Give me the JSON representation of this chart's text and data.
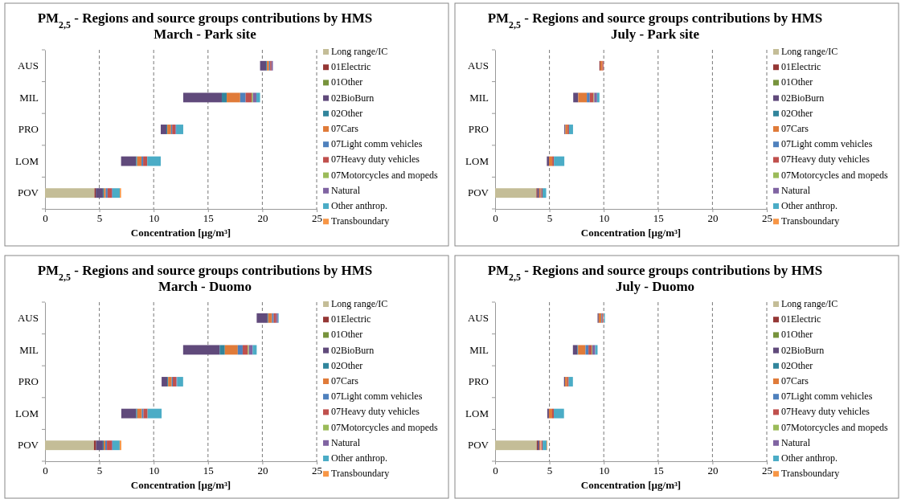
{
  "chart_data": [
    {
      "type": "bar",
      "orientation": "horizontal",
      "title": "PM$_{2,5}$ - Regions and source groups contributions by HMS",
      "subtitle": "March - Park site",
      "xlabel": "Concentration [µg/m³]",
      "categories": [
        "AUS",
        "MIL",
        "PRO",
        "LOM",
        "POV"
      ],
      "xlim": [
        0,
        25
      ],
      "xticks": [
        0,
        5,
        10,
        15,
        20,
        25
      ],
      "grid": "x",
      "legend": "right",
      "series": [
        {
          "name": "Long range/IC",
          "color": "#c4bd97",
          "values": [
            null,
            null,
            null,
            null,
            4.55
          ],
          "base": [
            null,
            null,
            null,
            null,
            0
          ]
        },
        {
          "name": "01Electric",
          "color": "#953735",
          "values": [
            null,
            null,
            null,
            null,
            0.12
          ],
          "base": [
            null,
            null,
            null,
            null,
            4.55
          ]
        },
        {
          "name": "01Other",
          "color": "#77933c",
          "values": [
            null,
            null,
            null,
            null,
            null
          ]
        },
        {
          "name": "02BioBurn",
          "color": "#604a7b",
          "values": [
            0.56,
            3.55,
            0.52,
            1.38,
            0.65
          ],
          "base": [
            19.79,
            12.72,
            10.65,
            7.0,
            4.67
          ]
        },
        {
          "name": "02Other",
          "color": "#31859c",
          "values": [
            0.07,
            0.45,
            0.08,
            0.1,
            0.1
          ],
          "base": [
            20.35,
            16.27,
            11.17,
            8.38,
            5.32
          ]
        },
        {
          "name": "07Cars",
          "color": "#e07b39",
          "values": [
            0.2,
            1.24,
            0.35,
            0.4,
            0.17
          ],
          "base": [
            20.42,
            16.72,
            11.25,
            8.48,
            5.42
          ]
        },
        {
          "name": "07Light comm vehicles",
          "color": "#4f81bd",
          "values": [
            0.1,
            0.5,
            0.1,
            0.15,
            0.17
          ],
          "base": [
            20.62,
            17.96,
            11.6,
            8.88,
            5.59
          ]
        },
        {
          "name": "07Heavy duty vehicles",
          "color": "#c0504d",
          "values": [
            0.12,
            0.55,
            0.3,
            0.38,
            0.38
          ],
          "base": [
            20.72,
            18.46,
            11.7,
            9.03,
            5.76
          ]
        },
        {
          "name": "07Motorcycles and mopeds",
          "color": "#9bbb59",
          "values": [
            null,
            0.12,
            null,
            null,
            null
          ],
          "base": [
            null,
            19.01,
            null,
            null,
            null
          ]
        },
        {
          "name": "Natural",
          "color": "#8064a2",
          "values": [
            0.13,
            0.32,
            0.06,
            null,
            0.06
          ],
          "base": [
            20.84,
            19.13,
            12.0,
            null,
            6.14
          ]
        },
        {
          "name": "Other anthrop.",
          "color": "#4bacc6",
          "values": [
            null,
            0.34,
            0.66,
            1.24,
            0.68
          ],
          "base": [
            null,
            19.45,
            12.06,
            9.41,
            6.2
          ]
        },
        {
          "name": "Transboundary",
          "color": "#f79646",
          "values": [
            null,
            null,
            null,
            null,
            0.12
          ],
          "base": [
            null,
            null,
            null,
            null,
            6.88
          ]
        }
      ]
    },
    {
      "type": "bar",
      "orientation": "horizontal",
      "title": "PM$_{2,5}$ - Regions and source groups contributions by HMS",
      "subtitle": "July - Park site",
      "xlabel": "Concentration [µg/m³]",
      "categories": [
        "AUS",
        "MIL",
        "PRO",
        "LOM",
        "POV"
      ],
      "xlim": [
        0,
        25
      ],
      "xticks": [
        0,
        5,
        10,
        15,
        20,
        25
      ],
      "grid": "x",
      "legend": "right",
      "series": [
        {
          "name": "Long range/IC",
          "color": "#c4bd97",
          "values": [
            null,
            null,
            null,
            null,
            3.8
          ],
          "base": [
            null,
            null,
            null,
            null,
            0
          ]
        },
        {
          "name": "01Electric",
          "color": "#953735",
          "values": [
            0.1,
            null,
            null,
            null,
            0.1
          ],
          "base": [
            9.6,
            null,
            null,
            null,
            3.8
          ]
        },
        {
          "name": "01Other",
          "color": "#77933c",
          "values": [
            null,
            null,
            null,
            null,
            null
          ]
        },
        {
          "name": "02BioBurn",
          "color": "#604a7b",
          "values": [
            null,
            0.46,
            0.1,
            0.2,
            0.15
          ],
          "base": [
            null,
            7.19,
            6.37,
            4.76,
            3.9
          ]
        },
        {
          "name": "02Other",
          "color": "#31859c",
          "values": [
            null,
            null,
            null,
            null,
            null
          ]
        },
        {
          "name": "07Cars",
          "color": "#e07b39",
          "values": [
            0.17,
            0.79,
            0.2,
            0.3,
            0.15
          ],
          "base": [
            9.7,
            7.65,
            6.47,
            4.96,
            4.05
          ]
        },
        {
          "name": "07Light comm vehicles",
          "color": "#4f81bd",
          "values": [
            null,
            0.27,
            null,
            null,
            0.06
          ],
          "base": [
            null,
            8.44,
            null,
            null,
            4.2
          ]
        },
        {
          "name": "07Heavy duty vehicles",
          "color": "#c0504d",
          "values": [
            0.1,
            0.35,
            0.13,
            0.15,
            0.1
          ],
          "base": [
            9.87,
            8.71,
            6.67,
            5.26,
            4.26
          ]
        },
        {
          "name": "07Motorcycles and mopeds",
          "color": "#9bbb59",
          "values": [
            null,
            0.06,
            null,
            null,
            null
          ],
          "base": [
            null,
            9.06,
            null,
            null,
            null
          ]
        },
        {
          "name": "Natural",
          "color": "#8064a2",
          "values": [
            null,
            0.26,
            null,
            null,
            null
          ],
          "base": [
            null,
            9.12,
            null,
            null,
            null
          ]
        },
        {
          "name": "Other anthrop.",
          "color": "#4bacc6",
          "values": [
            null,
            0.22,
            0.37,
            0.96,
            0.34
          ],
          "base": [
            null,
            9.38,
            6.8,
            5.41,
            4.36
          ]
        },
        {
          "name": "Transboundary",
          "color": "#f79646",
          "values": [
            null,
            null,
            null,
            null,
            null
          ]
        }
      ]
    },
    {
      "type": "bar",
      "orientation": "horizontal",
      "title": "PM$_{2,5}$ - Regions and source groups contributions by HMS",
      "subtitle": "March - Duomo",
      "xlabel": "Concentration [µg/m³]",
      "categories": [
        "AUS",
        "MIL",
        "PRO",
        "LOM",
        "POV"
      ],
      "xlim": [
        0,
        25
      ],
      "xticks": [
        0,
        5,
        10,
        15,
        20,
        25
      ],
      "grid": "x",
      "legend": "right",
      "series": [
        {
          "name": "Long range/IC",
          "color": "#c4bd97",
          "values": [
            null,
            null,
            null,
            null,
            4.5
          ],
          "base": [
            null,
            null,
            null,
            null,
            0
          ]
        },
        {
          "name": "01Electric",
          "color": "#953735",
          "values": [
            null,
            null,
            null,
            null,
            0.2
          ],
          "base": [
            null,
            null,
            null,
            null,
            4.5
          ]
        },
        {
          "name": "01Other",
          "color": "#77933c",
          "values": [
            null,
            null,
            null,
            null,
            null
          ]
        },
        {
          "name": "02BioBurn",
          "color": "#604a7b",
          "values": [
            1.0,
            3.37,
            0.52,
            1.37,
            0.62
          ],
          "base": [
            19.48,
            12.71,
            10.73,
            7.02,
            4.7
          ]
        },
        {
          "name": "02Other",
          "color": "#31859c",
          "values": [
            0.06,
            0.47,
            0.08,
            0.1,
            0.08
          ],
          "base": [
            20.48,
            16.08,
            11.25,
            8.39,
            5.32
          ]
        },
        {
          "name": "07Cars",
          "color": "#e07b39",
          "values": [
            0.35,
            1.19,
            0.33,
            0.42,
            0.15
          ],
          "base": [
            20.54,
            16.55,
            11.33,
            8.49,
            5.4
          ]
        },
        {
          "name": "07Light comm vehicles",
          "color": "#4f81bd",
          "values": [
            0.15,
            0.45,
            0.1,
            0.15,
            0.15
          ],
          "base": [
            20.89,
            17.74,
            11.66,
            8.91,
            5.55
          ]
        },
        {
          "name": "07Heavy duty vehicles",
          "color": "#c0504d",
          "values": [
            0.24,
            0.47,
            0.33,
            0.38,
            0.45
          ],
          "base": [
            21.04,
            18.19,
            11.76,
            9.06,
            5.7
          ]
        },
        {
          "name": "07Motorcycles and mopeds",
          "color": "#9bbb59",
          "values": [
            null,
            0.1,
            null,
            null,
            null
          ],
          "base": [
            null,
            18.66,
            null,
            null,
            null
          ]
        },
        {
          "name": "Natural",
          "color": "#8064a2",
          "values": [
            0.15,
            0.35,
            0.06,
            null,
            0.06
          ],
          "base": [
            21.28,
            18.76,
            12.09,
            null,
            6.15
          ]
        },
        {
          "name": "Other anthrop.",
          "color": "#4bacc6",
          "values": [
            0.07,
            0.37,
            0.56,
            1.29,
            0.66
          ],
          "base": [
            21.43,
            19.11,
            12.15,
            9.44,
            6.21
          ]
        },
        {
          "name": "Transboundary",
          "color": "#f79646",
          "values": [
            null,
            null,
            null,
            null,
            0.15
          ],
          "base": [
            null,
            null,
            null,
            null,
            6.87
          ]
        }
      ]
    },
    {
      "type": "bar",
      "orientation": "horizontal",
      "title": "PM$_{2,5}$ - Regions and source groups contributions by HMS",
      "subtitle": "July - Duomo",
      "xlabel": "Concentration [µg/m³]",
      "categories": [
        "AUS",
        "MIL",
        "PRO",
        "LOM",
        "POV"
      ],
      "xlim": [
        0,
        25
      ],
      "xticks": [
        0,
        5,
        10,
        15,
        20,
        25
      ],
      "grid": "x",
      "legend": "right",
      "series": [
        {
          "name": "Long range/IC",
          "color": "#c4bd97",
          "values": [
            null,
            null,
            null,
            null,
            3.83
          ],
          "base": [
            null,
            null,
            null,
            null,
            0
          ]
        },
        {
          "name": "01Electric",
          "color": "#953735",
          "values": [
            null,
            null,
            null,
            null,
            0.1
          ],
          "base": [
            null,
            null,
            null,
            null,
            3.83
          ]
        },
        {
          "name": "01Other",
          "color": "#77933c",
          "values": [
            null,
            null,
            null,
            null,
            null
          ]
        },
        {
          "name": "02BioBurn",
          "color": "#604a7b",
          "values": [
            0.1,
            0.41,
            0.1,
            0.15,
            0.15
          ],
          "base": [
            9.43,
            7.16,
            6.34,
            4.8,
            3.93
          ]
        },
        {
          "name": "02Other",
          "color": "#31859c",
          "values": [
            null,
            0.06,
            null,
            null,
            null
          ],
          "base": [
            null,
            7.57,
            null,
            null,
            null
          ]
        },
        {
          "name": "07Cars",
          "color": "#e07b39",
          "values": [
            0.25,
            0.69,
            0.2,
            0.3,
            0.11
          ],
          "base": [
            9.53,
            7.63,
            6.44,
            4.95,
            4.08
          ]
        },
        {
          "name": "07Light comm vehicles",
          "color": "#4f81bd",
          "values": [
            0.07,
            0.27,
            null,
            null,
            null
          ],
          "base": [
            9.78,
            8.32,
            null,
            null,
            null
          ]
        },
        {
          "name": "07Heavy duty vehicles",
          "color": "#c0504d",
          "values": [
            0.1,
            0.3,
            0.13,
            0.15,
            0.12
          ],
          "base": [
            9.85,
            8.59,
            6.64,
            5.25,
            4.25
          ]
        },
        {
          "name": "07Motorcycles and mopeds",
          "color": "#9bbb59",
          "values": [
            null,
            0.06,
            null,
            null,
            null
          ],
          "base": [
            null,
            8.89,
            null,
            null,
            null
          ]
        },
        {
          "name": "Natural",
          "color": "#8064a2",
          "values": [
            null,
            0.26,
            null,
            null,
            null
          ],
          "base": [
            null,
            8.95,
            null,
            null,
            null
          ]
        },
        {
          "name": "Other anthrop.",
          "color": "#4bacc6",
          "values": [
            0.09,
            0.22,
            0.39,
            0.94,
            0.37
          ],
          "base": [
            10.01,
            9.21,
            6.77,
            5.4,
            4.37
          ]
        },
        {
          "name": "Transboundary",
          "color": "#f79646",
          "values": [
            null,
            null,
            null,
            null,
            0.06
          ],
          "base": [
            null,
            null,
            null,
            null,
            4.74
          ]
        }
      ]
    }
  ]
}
